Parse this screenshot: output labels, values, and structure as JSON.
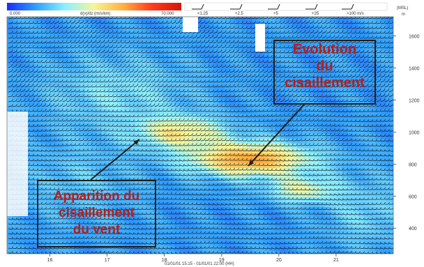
{
  "chart_data": {
    "type": "heatmap",
    "title": "",
    "colorbar": {
      "label": "d(v)/dz (m/s/km)",
      "min_label": "0.000",
      "max_label": "70.000",
      "min": 0,
      "max": 70,
      "colors": [
        "#1a2bff",
        "#2fa0ff",
        "#8df0ff",
        "#f5f59a",
        "#ffb040",
        "#ff3a1a",
        "#d6140e"
      ]
    },
    "barb_legend": {
      "items": [
        "<1.25",
        "+2.5",
        "+5",
        "+25",
        ">100 m/s"
      ]
    },
    "x_axis": {
      "label": "01/01/01 15:15 - 01/01/01 22:00 (HH)",
      "ticks": [
        "16",
        "17",
        "18",
        "19",
        "20",
        "21"
      ],
      "range_hours": [
        15.25,
        22.0
      ]
    },
    "y_axis": {
      "label": "(MSL)",
      "unit": "m",
      "ticks": [
        "1600",
        "1400",
        "1200",
        "1000",
        "800",
        "600",
        "400"
      ],
      "range_m": [
        240,
        1720
      ]
    },
    "hotspots": [
      {
        "center": [
          18.3,
          1000
        ],
        "spread": [
          0.55,
          70
        ],
        "value": 36
      },
      {
        "center": [
          19.5,
          830
        ],
        "spread": [
          0.75,
          75
        ],
        "value": 48
      },
      {
        "center": [
          20.4,
          640
        ],
        "spread": [
          0.4,
          55
        ],
        "value": 32
      },
      {
        "center": [
          17.2,
          1250
        ],
        "spread": [
          0.9,
          160
        ],
        "value": 22
      },
      {
        "center": [
          16.5,
          700
        ],
        "spread": [
          0.7,
          180
        ],
        "value": 18
      },
      {
        "center": [
          21.5,
          500
        ],
        "spread": [
          0.5,
          170
        ],
        "value": 20
      }
    ],
    "background_value": 12,
    "annotations": [
      {
        "text_lines": [
          "Evolution",
          "du",
          "cisaillement"
        ]
      },
      {
        "text_lines": [
          "Apparition du",
          "cisaillement",
          "du vent"
        ]
      }
    ],
    "colors": {
      "annotation_text": "#b81d18",
      "arrow": "#1e1e1e"
    }
  }
}
